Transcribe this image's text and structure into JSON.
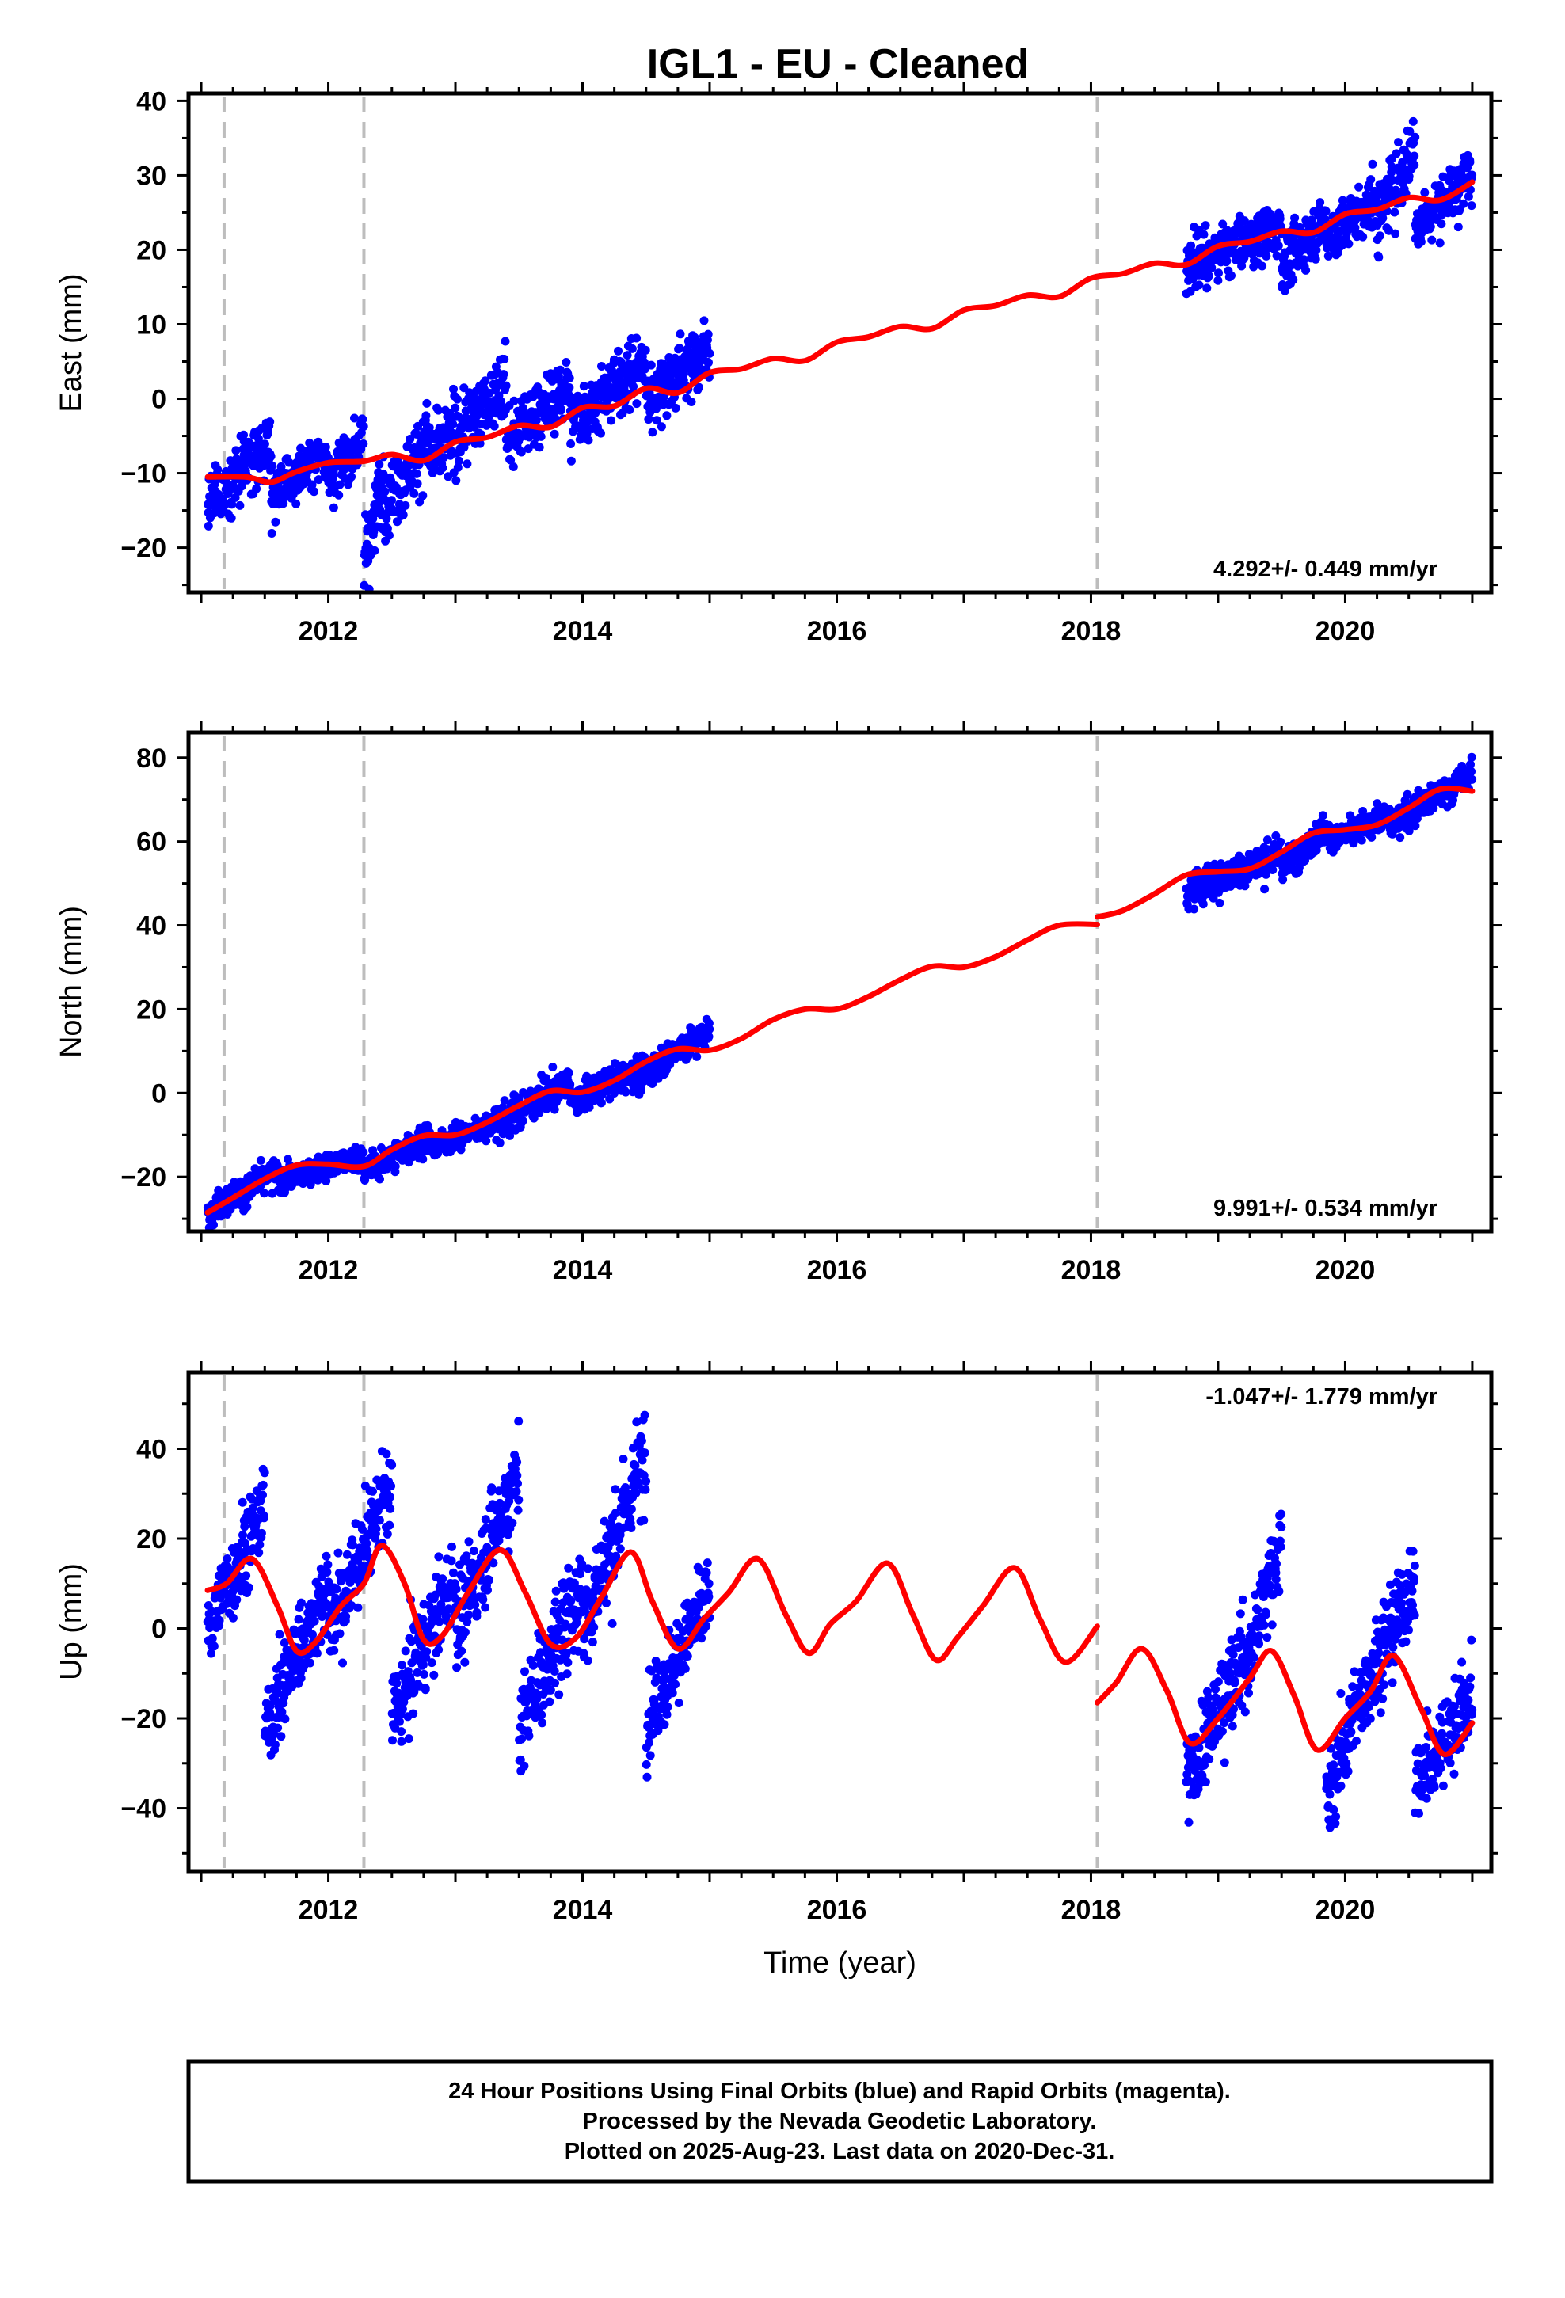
{
  "title": "IGL1  - EU - Cleaned",
  "footer": {
    "lines": [
      "24 Hour Positions Using Final Orbits (blue) and Rapid Orbits (magenta).",
      "Processed by the Nevada Geodetic Laboratory.",
      "Plotted on 2025-Aug-23. Last data on 2020-Dec-31."
    ]
  },
  "colors": {
    "points": "#0000ff",
    "model": "#ff0000",
    "breaks": "#bdbdbd",
    "axis": "#000000"
  },
  "chart_data": [
    {
      "type": "scatter",
      "component": "east",
      "ylabel": "East (mm)",
      "xlabel": "",
      "xlim": [
        2010.9,
        2021.15
      ],
      "ylim": [
        -26,
        41
      ],
      "xticks": [
        2012,
        2014,
        2016,
        2018,
        2020
      ],
      "yticks": [
        -20,
        -10,
        0,
        10,
        20,
        30,
        40
      ],
      "rate_label": "4.292+/- 0.449 mm/yr",
      "rate_position": "bottom-right",
      "breaks": [
        2011.18,
        2012.28,
        2018.05
      ],
      "data_segments": [
        [
          2011.05,
          2011.55,
          -14,
          -6,
          3.0
        ],
        [
          2011.55,
          2012.0,
          -13,
          -7,
          2.5
        ],
        [
          2012.0,
          2012.28,
          -11,
          -5,
          2.5
        ],
        [
          2012.28,
          2012.45,
          -21,
          -10,
          4.0
        ],
        [
          2012.45,
          2012.8,
          -14,
          -5,
          3.5
        ],
        [
          2012.8,
          2013.4,
          -8,
          2,
          3.5
        ],
        [
          2013.4,
          2013.9,
          -6,
          2,
          3.0
        ],
        [
          2013.9,
          2014.5,
          -3,
          5,
          3.0
        ],
        [
          2014.5,
          2015.0,
          0,
          7,
          3.0
        ],
        [
          2018.75,
          2019.5,
          18,
          23,
          2.5
        ],
        [
          2019.5,
          2019.85,
          18,
          24,
          2.5
        ],
        [
          2019.85,
          2020.25,
          21,
          27,
          2.5
        ],
        [
          2020.25,
          2020.55,
          24,
          34,
          3.5
        ],
        [
          2020.55,
          2021.0,
          23,
          30,
          2.5
        ]
      ],
      "model": {
        "breaks": [
          2011.18,
          2012.28,
          2018.05
        ],
        "curve": [
          [
            2011.05,
            -10.5
          ],
          [
            2011.35,
            -10.5
          ],
          [
            2011.55,
            -11.2
          ],
          [
            2011.75,
            -9.8
          ],
          [
            2012.0,
            -8.6
          ],
          [
            2012.28,
            -8.4
          ],
          [
            2012.5,
            -7.5
          ],
          [
            2012.75,
            -8.3
          ],
          [
            2013.0,
            -5.8
          ],
          [
            2013.25,
            -5.2
          ],
          [
            2013.5,
            -3.6
          ],
          [
            2013.75,
            -3.8
          ],
          [
            2014.0,
            -1.2
          ],
          [
            2014.25,
            -1.0
          ],
          [
            2014.5,
            1.4
          ],
          [
            2014.75,
            0.8
          ],
          [
            2015.0,
            3.5
          ],
          [
            2015.25,
            4.0
          ],
          [
            2015.5,
            5.4
          ],
          [
            2015.75,
            5.1
          ],
          [
            2016.0,
            7.6
          ],
          [
            2016.25,
            8.3
          ],
          [
            2016.5,
            9.7
          ],
          [
            2016.75,
            9.4
          ],
          [
            2017.0,
            11.9
          ],
          [
            2017.25,
            12.5
          ],
          [
            2017.5,
            13.9
          ],
          [
            2017.75,
            13.7
          ],
          [
            2018.0,
            16.2
          ],
          [
            2018.25,
            16.8
          ],
          [
            2018.5,
            18.2
          ],
          [
            2018.75,
            18.0
          ],
          [
            2019.0,
            20.5
          ],
          [
            2019.25,
            21.1
          ],
          [
            2019.5,
            22.5
          ],
          [
            2019.75,
            22.3
          ],
          [
            2020.0,
            24.8
          ],
          [
            2020.25,
            25.4
          ],
          [
            2020.5,
            27.0
          ],
          [
            2020.75,
            26.7
          ],
          [
            2021.0,
            29.1
          ]
        ]
      }
    },
    {
      "type": "scatter",
      "component": "north",
      "ylabel": "North (mm)",
      "xlabel": "",
      "xlim": [
        2010.9,
        2021.15
      ],
      "ylim": [
        -33,
        86
      ],
      "xticks": [
        2012,
        2014,
        2016,
        2018,
        2020
      ],
      "yticks": [
        -20,
        0,
        20,
        40,
        60,
        80
      ],
      "rate_label": "9.991+/- 0.534 mm/yr",
      "rate_position": "bottom-right",
      "breaks": [
        2011.18,
        2012.28,
        2018.05
      ],
      "data_segments": [
        [
          2011.05,
          2011.6,
          -28,
          -19,
          2.5
        ],
        [
          2011.6,
          2012.28,
          -21,
          -15,
          2.0
        ],
        [
          2012.28,
          2012.8,
          -19,
          -10,
          2.5
        ],
        [
          2012.8,
          2013.3,
          -13,
          -7,
          2.0
        ],
        [
          2013.3,
          2013.9,
          -8,
          3,
          3.0
        ],
        [
          2013.9,
          2014.4,
          -2,
          5,
          2.5
        ],
        [
          2014.4,
          2015.0,
          3,
          15,
          2.5
        ],
        [
          2018.75,
          2019.5,
          48,
          57,
          3.0
        ],
        [
          2019.5,
          2019.85,
          54,
          63,
          2.5
        ],
        [
          2019.85,
          2020.35,
          60,
          66,
          2.0
        ],
        [
          2020.35,
          2021.0,
          64,
          76,
          2.5
        ]
      ],
      "model": {
        "breaks": [
          2011.18,
          2012.28,
          2018.05
        ],
        "curve": [
          [
            2011.05,
            -28.5
          ],
          [
            2011.25,
            -25.0
          ],
          [
            2011.5,
            -20.5
          ],
          [
            2011.75,
            -17.2
          ],
          [
            2012.0,
            -17.0
          ],
          [
            2012.28,
            -17.5
          ],
          [
            2012.5,
            -13.5
          ],
          [
            2012.75,
            -10.2
          ],
          [
            2013.0,
            -10.0
          ],
          [
            2013.25,
            -7.0
          ],
          [
            2013.5,
            -3.0
          ],
          [
            2013.75,
            0.5
          ],
          [
            2014.0,
            0.2
          ],
          [
            2014.25,
            3.0
          ],
          [
            2014.5,
            7.5
          ],
          [
            2014.75,
            10.5
          ],
          [
            2015.0,
            10.2
          ],
          [
            2015.25,
            13.0
          ],
          [
            2015.5,
            17.5
          ],
          [
            2015.75,
            20.0
          ],
          [
            2016.0,
            20.0
          ],
          [
            2016.25,
            23.0
          ],
          [
            2016.5,
            27.0
          ],
          [
            2016.75,
            30.2
          ],
          [
            2017.0,
            30.0
          ],
          [
            2017.25,
            32.5
          ],
          [
            2017.5,
            36.5
          ],
          [
            2017.75,
            40.0
          ],
          [
            2018.05,
            40.2
          ],
          [
            2018.05,
            42.0
          ],
          [
            2018.25,
            43.5
          ],
          [
            2018.5,
            47.5
          ],
          [
            2018.75,
            52.0
          ],
          [
            2019.0,
            52.8
          ],
          [
            2019.25,
            53.5
          ],
          [
            2019.5,
            57.5
          ],
          [
            2019.75,
            62.0
          ],
          [
            2020.0,
            62.8
          ],
          [
            2020.25,
            64.0
          ],
          [
            2020.5,
            68.0
          ],
          [
            2020.75,
            72.5
          ],
          [
            2021.0,
            72.0
          ]
        ]
      }
    },
    {
      "type": "scatter",
      "component": "up",
      "ylabel": "Up (mm)",
      "xlabel": "Time (year)",
      "xlim": [
        2010.9,
        2021.15
      ],
      "ylim": [
        -54,
        57
      ],
      "xticks": [
        2012,
        2014,
        2016,
        2018,
        2020
      ],
      "yticks": [
        -40,
        -20,
        0,
        20,
        40
      ],
      "rate_label": "-1.047+/- 1.779 mm/yr",
      "rate_position": "top-right",
      "breaks": [
        2011.18,
        2012.28,
        2018.05
      ],
      "data_segments": [
        [
          2011.05,
          2011.5,
          0,
          28,
          7
        ],
        [
          2011.5,
          2012.0,
          -22,
          10,
          7
        ],
        [
          2012.0,
          2012.5,
          0,
          32,
          7
        ],
        [
          2012.5,
          2013.0,
          -20,
          12,
          7
        ],
        [
          2013.0,
          2013.5,
          0,
          35,
          7
        ],
        [
          2013.5,
          2014.0,
          -22,
          10,
          8
        ],
        [
          2014.0,
          2014.5,
          0,
          40,
          8
        ],
        [
          2014.5,
          2015.0,
          -20,
          8,
          7
        ],
        [
          2018.75,
          2019.2,
          -35,
          -5,
          7
        ],
        [
          2019.2,
          2019.5,
          -10,
          20,
          7
        ],
        [
          2019.85,
          2020.2,
          -38,
          -10,
          7
        ],
        [
          2020.2,
          2020.55,
          -10,
          10,
          7
        ],
        [
          2020.55,
          2021.0,
          -35,
          -15,
          7
        ]
      ],
      "model": {
        "breaks": [
          2011.18,
          2012.28,
          2018.05
        ],
        "curve": [
          [
            2011.05,
            8.5
          ],
          [
            2011.2,
            10.0
          ],
          [
            2011.4,
            15.5
          ],
          [
            2011.6,
            5.0
          ],
          [
            2011.75,
            -5.0
          ],
          [
            2011.9,
            -3.0
          ],
          [
            2012.1,
            5.0
          ],
          [
            2012.28,
            10.0
          ],
          [
            2012.42,
            18.5
          ],
          [
            2012.6,
            10.0
          ],
          [
            2012.75,
            -2.5
          ],
          [
            2012.9,
            -1.5
          ],
          [
            2013.1,
            8.0
          ],
          [
            2013.35,
            17.5
          ],
          [
            2013.55,
            8.0
          ],
          [
            2013.75,
            -3.5
          ],
          [
            2013.95,
            -2.0
          ],
          [
            2014.15,
            7.0
          ],
          [
            2014.38,
            17.0
          ],
          [
            2014.55,
            6.0
          ],
          [
            2014.75,
            -4.5
          ],
          [
            2014.95,
            2.0
          ],
          [
            2015.15,
            8.0
          ],
          [
            2015.38,
            15.5
          ],
          [
            2015.6,
            3.0
          ],
          [
            2015.78,
            -5.5
          ],
          [
            2015.95,
            1.0
          ],
          [
            2016.15,
            6.0
          ],
          [
            2016.4,
            14.5
          ],
          [
            2016.6,
            3.0
          ],
          [
            2016.78,
            -7.0
          ],
          [
            2016.95,
            -2.0
          ],
          [
            2017.15,
            5.0
          ],
          [
            2017.4,
            13.5
          ],
          [
            2017.6,
            2.0
          ],
          [
            2017.8,
            -7.5
          ],
          [
            2018.05,
            0.5
          ],
          [
            2018.05,
            -16.5
          ],
          [
            2018.2,
            -12.0
          ],
          [
            2018.4,
            -4.5
          ],
          [
            2018.6,
            -14.0
          ],
          [
            2018.78,
            -25.5
          ],
          [
            2019.0,
            -20.0
          ],
          [
            2019.25,
            -11.0
          ],
          [
            2019.42,
            -5.0
          ],
          [
            2019.6,
            -15.0
          ],
          [
            2019.78,
            -27.0
          ],
          [
            2020.0,
            -20.0
          ],
          [
            2020.2,
            -14.0
          ],
          [
            2020.38,
            -6.0
          ],
          [
            2020.6,
            -18.0
          ],
          [
            2020.78,
            -28.0
          ],
          [
            2021.0,
            -21.0
          ]
        ]
      }
    }
  ]
}
